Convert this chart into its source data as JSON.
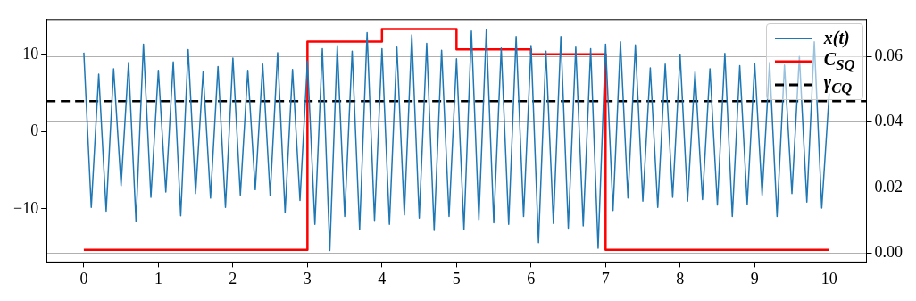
{
  "chart_data": {
    "type": "line",
    "xlim": [
      -0.5,
      10.5
    ],
    "xticks": [
      0,
      1,
      2,
      3,
      4,
      5,
      6,
      7,
      8,
      9,
      10
    ],
    "ylim": [
      -16.9,
      14.6
    ],
    "yticks": [
      {
        "value": -10,
        "label": "−10"
      },
      0,
      10
    ],
    "y2lim": [
      -0.0027,
      0.0713
    ],
    "y2ticks": [
      {
        "value": 0,
        "label": "0.00"
      },
      {
        "value": 0.02,
        "label": "0.02"
      },
      {
        "value": 0.04,
        "label": "0.04"
      },
      {
        "value": 0.06,
        "label": "0.06"
      }
    ],
    "grid": "y2",
    "legend": "top right",
    "marker": "none",
    "series": [
      {
        "name": "x(t)",
        "type": "line",
        "color": "#1f77b4",
        "x": [
          0,
          0.1,
          0.2,
          0.3,
          0.4,
          0.5,
          0.6,
          0.7,
          0.8,
          0.9,
          1,
          1.1,
          1.2,
          1.3,
          1.4,
          1.5,
          1.6,
          1.7,
          1.8,
          1.9,
          2,
          2.1,
          2.2,
          2.3,
          2.4,
          2.5,
          2.6,
          2.7,
          2.8,
          2.9,
          3,
          3.1,
          3.2,
          3.3,
          3.4,
          3.5,
          3.6,
          3.7,
          3.8,
          3.9,
          4,
          4.1,
          4.2,
          4.3,
          4.4,
          4.5,
          4.6,
          4.7,
          4.8,
          4.9,
          5,
          5.1,
          5.2,
          5.3,
          5.4,
          5.5,
          5.6,
          5.7,
          5.8,
          5.9,
          6,
          6.1,
          6.2,
          6.3,
          6.4,
          6.5,
          6.6,
          6.7,
          6.8,
          6.9,
          7,
          7.1,
          7.2,
          7.3,
          7.4,
          7.5,
          7.6,
          7.7,
          7.8,
          7.9,
          8,
          8.1,
          8.2,
          8.3,
          8.4,
          8.5,
          8.6,
          8.7,
          8.8,
          8.9,
          9,
          9.1,
          9.2,
          9.3,
          9.4,
          9.5,
          9.6,
          9.7,
          9.8,
          9.9,
          10
        ],
        "values": [
          10.3,
          -9.8,
          7.5,
          -10.3,
          8.2,
          -7,
          9,
          -11.6,
          11.4,
          -8.5,
          8,
          -7.8,
          9.1,
          -10.9,
          10.7,
          -8,
          7.8,
          -8.6,
          8.5,
          -9.8,
          9.6,
          -8.2,
          8,
          -7.5,
          8.8,
          -8.3,
          10.3,
          -10.5,
          8.1,
          -8.9,
          9.2,
          -12,
          10.8,
          -15.4,
          11.2,
          -11,
          10.5,
          -12.7,
          12.9,
          -11.5,
          10.8,
          -12,
          11,
          -10.8,
          12.6,
          -11.2,
          11.5,
          -12.8,
          10.6,
          -11,
          9.5,
          -12.7,
          13.1,
          -11.4,
          13.3,
          -11.8,
          10.9,
          -12,
          12.4,
          -11,
          11.2,
          -14.4,
          10.5,
          -11.9,
          12.4,
          -12.5,
          11,
          -12.2,
          10.8,
          -15.1,
          11.4,
          -10.2,
          11.7,
          -8.6,
          11.3,
          -9,
          8.3,
          -9.8,
          8.8,
          -8.5,
          10,
          -9,
          7.8,
          -8.8,
          8.2,
          -9.5,
          10.2,
          -11,
          8.6,
          -9.4,
          8.9,
          -8.2,
          9,
          -11,
          8.7,
          -8,
          9.8,
          -9.1,
          11.7,
          -9.9,
          5
        ]
      },
      {
        "name": "C$_{SQ}$",
        "type": "step",
        "axis": "y2",
        "color": "#ff0000",
        "x": [
          0,
          3,
          4,
          5,
          6,
          7,
          10
        ],
        "values": [
          0.001,
          0.0646,
          0.0684,
          0.0622,
          0.0607,
          0.001,
          0.001
        ]
      }
    ],
    "ref_lines": [
      {
        "axis": "y",
        "value": 4,
        "label": "γ$_{CQ}$",
        "color": "#000000",
        "line_style": "dashed"
      }
    ]
  }
}
